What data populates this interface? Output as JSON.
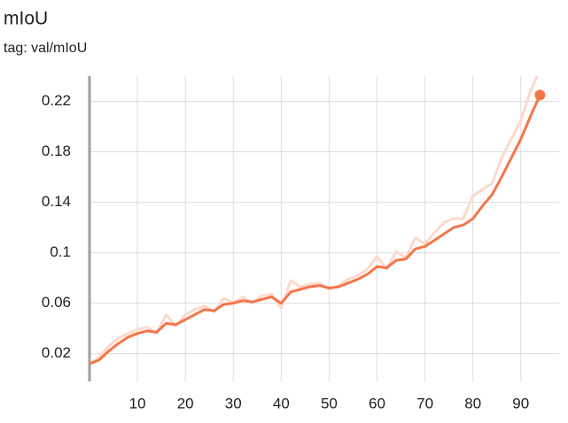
{
  "chart_data": {
    "type": "line",
    "title": "mIoU",
    "subtitle": "tag: val/mIoU",
    "x": [
      0,
      2,
      4,
      6,
      8,
      10,
      12,
      14,
      16,
      18,
      20,
      22,
      24,
      26,
      28,
      30,
      32,
      34,
      36,
      38,
      40,
      42,
      44,
      46,
      48,
      50,
      52,
      54,
      56,
      58,
      60,
      62,
      64,
      66,
      68,
      70,
      72,
      74,
      76,
      78,
      80,
      82,
      84,
      86,
      88,
      90,
      92,
      94
    ],
    "series": [
      {
        "color": "#fcd9cc",
        "values": [
          0.012,
          0.017,
          0.026,
          0.032,
          0.036,
          0.039,
          0.041,
          0.036,
          0.051,
          0.042,
          0.051,
          0.055,
          0.058,
          0.053,
          0.064,
          0.06,
          0.065,
          0.06,
          0.066,
          0.067,
          0.056,
          0.078,
          0.073,
          0.075,
          0.076,
          0.071,
          0.074,
          0.079,
          0.082,
          0.087,
          0.097,
          0.087,
          0.101,
          0.096,
          0.112,
          0.107,
          0.116,
          0.124,
          0.127,
          0.127,
          0.145,
          0.15,
          0.155,
          0.175,
          0.19,
          0.205,
          0.228,
          0.245
        ]
      },
      {
        "color": "#f4754a",
        "values": [
          0.012,
          0.015,
          0.022,
          0.028,
          0.033,
          0.036,
          0.038,
          0.037,
          0.044,
          0.043,
          0.047,
          0.051,
          0.055,
          0.054,
          0.059,
          0.06,
          0.062,
          0.061,
          0.063,
          0.065,
          0.06,
          0.069,
          0.071,
          0.073,
          0.074,
          0.072,
          0.073,
          0.076,
          0.079,
          0.083,
          0.089,
          0.088,
          0.094,
          0.095,
          0.103,
          0.105,
          0.11,
          0.115,
          0.12,
          0.122,
          0.127,
          0.137,
          0.146,
          0.16,
          0.175,
          0.19,
          0.208,
          0.225
        ]
      }
    ],
    "xlim": [
      0,
      98
    ],
    "ylim": [
      -0.002,
      0.24
    ],
    "xticks": [
      10,
      20,
      30,
      40,
      50,
      60,
      70,
      80,
      90
    ],
    "yticks": [
      0.02,
      0.06,
      0.1,
      0.14,
      0.18,
      0.22
    ],
    "grid": true
  }
}
